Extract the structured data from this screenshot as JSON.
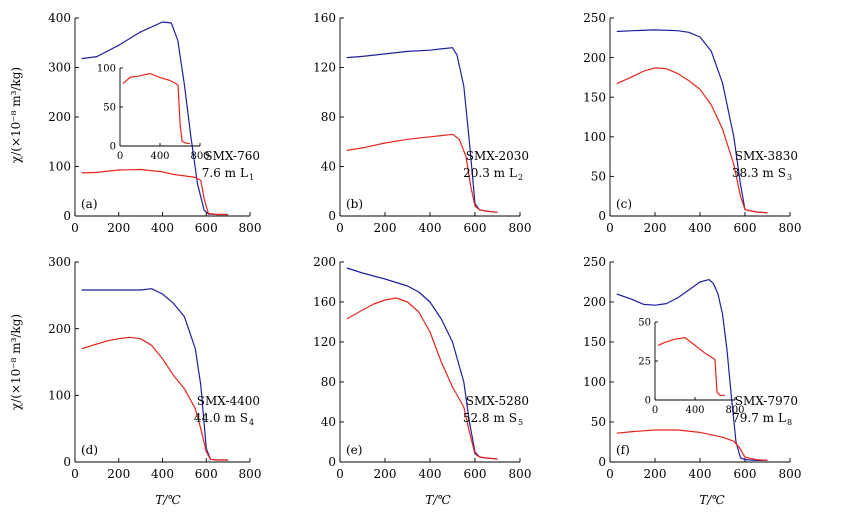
{
  "figure": {
    "y_axis_label": "χ/(×10⁻⁸ m³/kg)",
    "x_axis_label": "T/℃",
    "colors": {
      "heating": "#1f1f9e",
      "cooling": "#e8261c",
      "axis": "#000000"
    }
  },
  "chart_data": [
    {
      "type": "line",
      "panel": "(a)",
      "sample": "SMX-760",
      "depth": "7.6 m",
      "layer": "L",
      "layer_sub": "1",
      "xlim": [
        0,
        800
      ],
      "ylim": [
        0,
        400
      ],
      "xticks": [
        0,
        200,
        400,
        600,
        800
      ],
      "yticks": [
        0,
        100,
        200,
        300,
        400
      ],
      "series": [
        {
          "color": "#1f1f9e",
          "x": [
            30,
            100,
            200,
            300,
            400,
            440,
            470,
            500,
            530,
            560,
            590,
            610,
            650,
            700
          ],
          "y": [
            318,
            322,
            345,
            372,
            392,
            390,
            355,
            265,
            160,
            65,
            12,
            4,
            3,
            3
          ]
        },
        {
          "color": "#e8261c",
          "x": [
            30,
            100,
            200,
            300,
            400,
            450,
            500,
            550,
            575,
            590,
            610,
            650,
            700
          ],
          "y": [
            87,
            88,
            93,
            94,
            89,
            84,
            81,
            78,
            72,
            35,
            5,
            3,
            3
          ]
        }
      ],
      "inset": {
        "xlim": [
          0,
          800
        ],
        "ylim": [
          0,
          100
        ],
        "xticks": [
          0,
          400,
          800
        ],
        "yticks": [
          0,
          50,
          100
        ],
        "series": [
          {
            "color": "#e8261c",
            "x": [
              30,
              100,
              200,
              300,
              400,
              500,
              560,
              580,
              600,
              620,
              650,
              700
            ],
            "y": [
              80,
              88,
              90,
              93,
              88,
              84,
              80,
              78,
              30,
              6,
              4,
              3
            ]
          }
        ]
      }
    },
    {
      "type": "line",
      "panel": "(b)",
      "sample": "SMX-2030",
      "depth": "20.3 m",
      "layer": "L",
      "layer_sub": "2",
      "xlim": [
        0,
        800
      ],
      "ylim": [
        0,
        160
      ],
      "xticks": [
        0,
        200,
        400,
        600,
        800
      ],
      "yticks": [
        0,
        40,
        80,
        120,
        160
      ],
      "series": [
        {
          "color": "#1f1f9e",
          "x": [
            30,
            100,
            200,
            300,
            400,
            450,
            500,
            520,
            550,
            575,
            600,
            620,
            650,
            700
          ],
          "y": [
            128,
            129,
            131,
            133,
            134,
            135,
            136,
            130,
            105,
            60,
            10,
            5,
            4,
            3
          ]
        },
        {
          "color": "#e8261c",
          "x": [
            30,
            100,
            200,
            300,
            400,
            450,
            500,
            530,
            560,
            580,
            600,
            620,
            650,
            700
          ],
          "y": [
            53,
            55,
            59,
            62,
            64,
            65,
            66,
            62,
            48,
            25,
            8,
            5,
            4,
            3
          ]
        }
      ]
    },
    {
      "type": "line",
      "panel": "(c)",
      "sample": "SMX-3830",
      "depth": "38.3 m",
      "layer": "S",
      "layer_sub": "3",
      "xlim": [
        0,
        800
      ],
      "ylim": [
        0,
        250
      ],
      "xticks": [
        0,
        200,
        400,
        600,
        800
      ],
      "yticks": [
        0,
        50,
        100,
        150,
        200,
        250
      ],
      "series": [
        {
          "color": "#1f1f9e",
          "x": [
            30,
            100,
            200,
            300,
            350,
            400,
            450,
            500,
            550,
            580,
            600,
            650,
            700
          ],
          "y": [
            233,
            234,
            235,
            234,
            232,
            226,
            208,
            168,
            100,
            40,
            8,
            5,
            4
          ]
        },
        {
          "color": "#e8261c",
          "x": [
            30,
            100,
            150,
            200,
            250,
            300,
            350,
            400,
            450,
            500,
            550,
            580,
            600,
            650,
            700
          ],
          "y": [
            167,
            176,
            183,
            187,
            186,
            180,
            171,
            160,
            140,
            110,
            65,
            25,
            8,
            5,
            4
          ]
        }
      ]
    },
    {
      "type": "line",
      "panel": "(d)",
      "sample": "SMX-4400",
      "depth": "44.0 m",
      "layer": "S",
      "layer_sub": "4",
      "xlim": [
        0,
        800
      ],
      "ylim": [
        0,
        300
      ],
      "xticks": [
        0,
        200,
        400,
        600,
        800
      ],
      "yticks": [
        0,
        100,
        200,
        300
      ],
      "series": [
        {
          "color": "#1f1f9e",
          "x": [
            30,
            100,
            200,
            300,
            350,
            400,
            450,
            500,
            550,
            575,
            600,
            620,
            650,
            700
          ],
          "y": [
            258,
            258,
            258,
            258,
            260,
            252,
            238,
            218,
            170,
            115,
            20,
            4,
            3,
            3
          ]
        },
        {
          "color": "#e8261c",
          "x": [
            30,
            100,
            150,
            200,
            250,
            300,
            350,
            400,
            450,
            500,
            550,
            575,
            600,
            620,
            650,
            700
          ],
          "y": [
            170,
            177,
            182,
            185,
            187,
            185,
            175,
            155,
            130,
            110,
            80,
            50,
            15,
            4,
            3,
            3
          ]
        }
      ]
    },
    {
      "type": "line",
      "panel": "(e)",
      "sample": "SMX-5280",
      "depth": "52.8 m",
      "layer": "S",
      "layer_sub": "5",
      "xlim": [
        0,
        800
      ],
      "ylim": [
        0,
        200
      ],
      "xticks": [
        0,
        200,
        400,
        600,
        800
      ],
      "yticks": [
        0,
        40,
        80,
        120,
        160,
        200
      ],
      "series": [
        {
          "color": "#1f1f9e",
          "x": [
            30,
            100,
            200,
            300,
            350,
            400,
            450,
            500,
            550,
            575,
            600,
            620,
            650,
            700
          ],
          "y": [
            194,
            189,
            183,
            176,
            170,
            160,
            143,
            120,
            80,
            40,
            10,
            5,
            4,
            3
          ]
        },
        {
          "color": "#e8261c",
          "x": [
            30,
            100,
            150,
            200,
            250,
            300,
            350,
            400,
            450,
            500,
            550,
            575,
            600,
            620,
            650,
            700
          ],
          "y": [
            143,
            152,
            158,
            162,
            164,
            160,
            150,
            130,
            100,
            75,
            55,
            30,
            8,
            5,
            4,
            3
          ]
        }
      ]
    },
    {
      "type": "line",
      "panel": "(f)",
      "sample": "SMX-7970",
      "depth": "79.7 m",
      "layer": "L",
      "layer_sub": "8",
      "xlim": [
        0,
        800
      ],
      "ylim": [
        0,
        250
      ],
      "xticks": [
        0,
        200,
        400,
        600,
        800
      ],
      "yticks": [
        0,
        50,
        100,
        150,
        200,
        250
      ],
      "series": [
        {
          "color": "#1f1f9e",
          "x": [
            30,
            100,
            150,
            200,
            250,
            300,
            350,
            400,
            440,
            460,
            480,
            500,
            520,
            540,
            560,
            580,
            600,
            650,
            700
          ],
          "y": [
            210,
            203,
            197,
            196,
            198,
            205,
            215,
            225,
            228,
            223,
            210,
            185,
            140,
            80,
            25,
            5,
            3,
            2,
            2
          ]
        },
        {
          "color": "#e8261c",
          "x": [
            30,
            100,
            200,
            300,
            400,
            450,
            500,
            550,
            575,
            600,
            650,
            700
          ],
          "y": [
            36,
            38,
            40,
            40,
            37,
            34,
            31,
            26,
            18,
            6,
            3,
            2
          ]
        }
      ],
      "inset": {
        "xlim": [
          0,
          800
        ],
        "ylim": [
          0,
          50
        ],
        "xticks": [
          0,
          400,
          800
        ],
        "yticks": [
          0,
          25,
          50
        ],
        "series": [
          {
            "color": "#e8261c",
            "x": [
              30,
              100,
              200,
              300,
              400,
              500,
              550,
              600,
              620,
              650,
              700
            ],
            "y": [
              35,
              37,
              39,
              40,
              35,
              30,
              28,
              26,
              5,
              3,
              3
            ]
          }
        ]
      }
    }
  ]
}
